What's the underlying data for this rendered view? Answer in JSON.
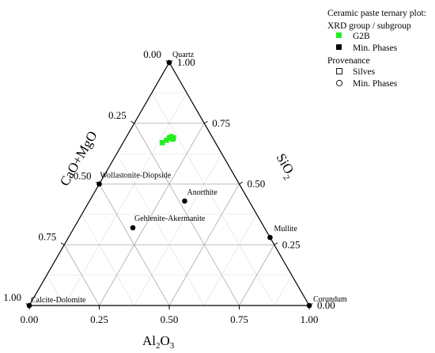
{
  "chart_data": {
    "type": "scatter",
    "subtype": "ternary",
    "axes": {
      "bottom": {
        "label": "Al2O3",
        "label_base": "Al",
        "label_sub1": "2",
        "label_mid": "O",
        "label_sub2": "3",
        "ticks": [
          "0.00",
          "0.25",
          "0.50",
          "0.75",
          "1.00"
        ]
      },
      "left": {
        "label": "CaO+MgO",
        "ticks": [
          "0.00",
          "0.25",
          "0.50",
          "0.75",
          "1.00"
        ]
      },
      "right": {
        "label": "SiO2",
        "label_base": "SiO",
        "label_sub": "2",
        "ticks": [
          "0.00",
          "0.25",
          "0.50",
          "0.75",
          "1.00"
        ]
      }
    },
    "grid": true,
    "legend": {
      "position": "top-right",
      "title": "Ceramic paste ternary plot:",
      "group1_title": "XRD group / subgroup",
      "group1_items": [
        {
          "label": "G2B",
          "marker": "filled-square",
          "color": "#22ee22"
        },
        {
          "label": "Min. Phases",
          "marker": "filled-square",
          "color": "#000000"
        }
      ],
      "group2_title": "Provenance",
      "group2_items": [
        {
          "label": "Silves",
          "marker": "open-square"
        },
        {
          "label": "Min. Phases",
          "marker": "open-circle"
        }
      ]
    },
    "series": [
      {
        "name": "G2B",
        "color": "#22ee22",
        "marker": "square",
        "points": [
          {
            "al2o3": 0.14,
            "cao_mgo": 0.19,
            "sio2": 0.67
          },
          {
            "al2o3": 0.15,
            "cao_mgo": 0.17,
            "sio2": 0.68
          },
          {
            "al2o3": 0.155,
            "cao_mgo": 0.155,
            "sio2": 0.69
          },
          {
            "al2o3": 0.16,
            "cao_mgo": 0.145,
            "sio2": 0.695
          },
          {
            "al2o3": 0.17,
            "cao_mgo": 0.145,
            "sio2": 0.685
          },
          {
            "al2o3": 0.17,
            "cao_mgo": 0.14,
            "sio2": 0.69
          }
        ]
      },
      {
        "name": "Min. Phases",
        "color": "#000000",
        "marker": "circle",
        "points": [
          {
            "label": "Quartz",
            "al2o3": 0.0,
            "cao_mgo": 0.0,
            "sio2": 1.0
          },
          {
            "label": "Wollastonite-Diopside",
            "al2o3": 0.0,
            "cao_mgo": 0.5,
            "sio2": 0.5
          },
          {
            "label": "Anorthite",
            "al2o3": 0.34,
            "cao_mgo": 0.23,
            "sio2": 0.43
          },
          {
            "label": "Mullite",
            "al2o3": 0.72,
            "cao_mgo": 0.0,
            "sio2": 0.28
          },
          {
            "label": "Gehlenite-Akermanite",
            "al2o3": 0.21,
            "cao_mgo": 0.47,
            "sio2": 0.32
          },
          {
            "label": "Calcite-Dolomite",
            "al2o3": 0.0,
            "cao_mgo": 1.0,
            "sio2": 0.0
          },
          {
            "label": "Corundum",
            "al2o3": 1.0,
            "cao_mgo": 0.0,
            "sio2": 0.0
          }
        ]
      }
    ]
  }
}
